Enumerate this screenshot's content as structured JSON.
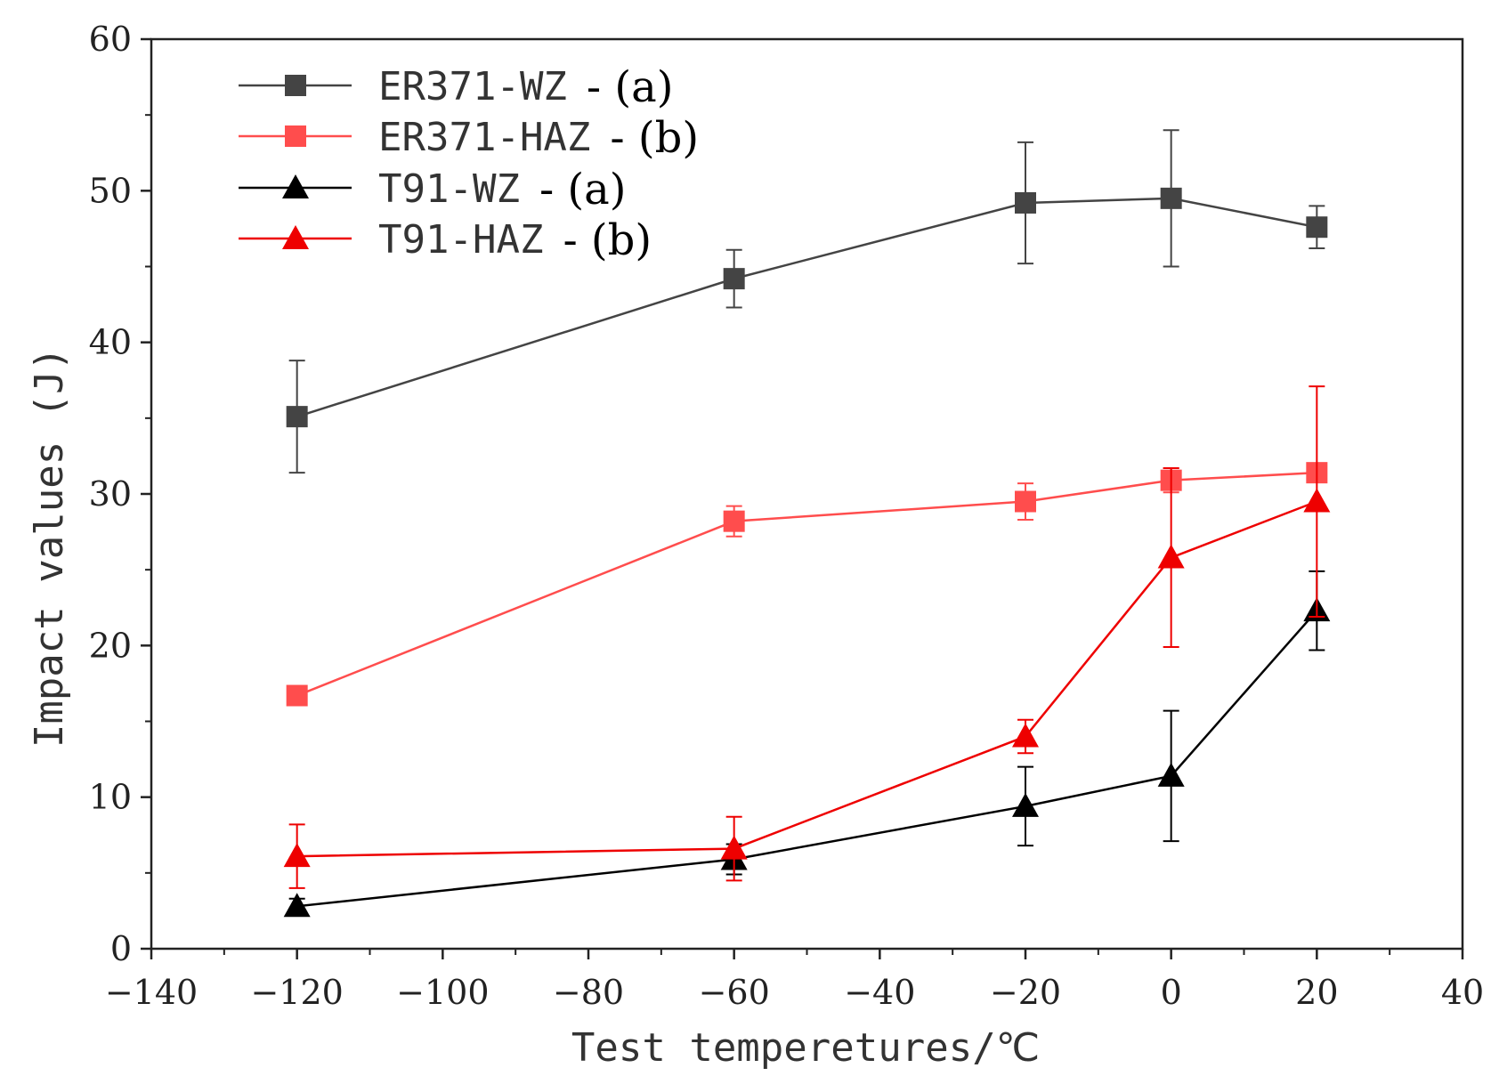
{
  "chart_data": {
    "type": "line",
    "title": "",
    "xlabel": "Test temperetures/℃",
    "ylabel": "Impact values (J)",
    "xlim": [
      -140,
      40
    ],
    "ylim": [
      0,
      60
    ],
    "x_ticks": [
      -140,
      -120,
      -100,
      -80,
      -60,
      -40,
      -20,
      0,
      20,
      40
    ],
    "x_tick_labels": [
      "−140",
      "−120",
      "−100",
      "−80",
      "−60",
      "−40",
      "−20",
      "0",
      "20",
      "40"
    ],
    "y_ticks": [
      0,
      10,
      20,
      30,
      40,
      50,
      60
    ],
    "y_tick_labels": [
      "0",
      "10",
      "20",
      "30",
      "40",
      "50",
      "60"
    ],
    "x_minor_step": 10,
    "y_minor_step": 5,
    "grid": false,
    "legend_position": "top-left",
    "x": [
      -120,
      -60,
      -20,
      0,
      20
    ],
    "series": [
      {
        "name": "ER371-WZ",
        "suffix": "- (a)",
        "color": "#444444",
        "marker": "square",
        "values": [
          35.1,
          44.2,
          49.2,
          49.5,
          47.6
        ],
        "errors": [
          3.7,
          1.9,
          4.0,
          4.5,
          1.4
        ]
      },
      {
        "name": "ER371-HAZ",
        "suffix": "- (b)",
        "color": "#ff4d4d",
        "marker": "square",
        "values": [
          16.7,
          28.2,
          29.5,
          30.9,
          31.4
        ],
        "errors": [
          0.3,
          1.0,
          1.2,
          0.8,
          0.3
        ]
      },
      {
        "name": "T91-WZ",
        "suffix": "- (a)",
        "color": "#000000",
        "marker": "triangle",
        "values": [
          2.8,
          5.9,
          9.4,
          11.4,
          22.3
        ],
        "errors": [
          0.5,
          1.0,
          2.6,
          4.3,
          2.6
        ]
      },
      {
        "name": "T91-HAZ",
        "suffix": "- (b)",
        "color": "#ee0000",
        "marker": "triangle",
        "values": [
          6.1,
          6.6,
          14.0,
          25.8,
          29.5
        ],
        "errors": [
          2.1,
          2.1,
          1.1,
          5.9,
          7.6
        ]
      }
    ]
  }
}
